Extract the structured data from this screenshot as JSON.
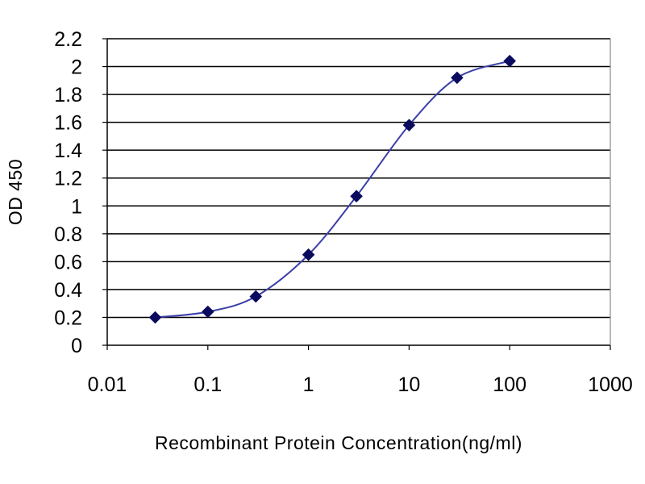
{
  "chart_data": {
    "type": "line",
    "title": "",
    "xlabel": "Recombinant Protein Concentration(ng/ml)",
    "ylabel": "OD 450",
    "x_scale": "log",
    "xlim": [
      0.01,
      1000
    ],
    "ylim": [
      0,
      2.2
    ],
    "grid": true,
    "legend": "none",
    "x_ticks": [
      "0.01",
      "0.1",
      "1",
      "10",
      "100",
      "1000"
    ],
    "y_ticks": [
      "0",
      "0.2",
      "0.4",
      "0.6",
      "0.8",
      "1",
      "1.2",
      "1.4",
      "1.6",
      "1.8",
      "2",
      "2.2"
    ],
    "series": [
      {
        "color": "#3b3fa8",
        "marker_color": "#0a0a5e",
        "x": [
          0.03,
          0.1,
          0.3,
          1,
          3,
          10,
          30,
          100
        ],
        "y": [
          0.2,
          0.24,
          0.35,
          0.65,
          1.07,
          1.58,
          1.92,
          2.04
        ]
      }
    ]
  }
}
